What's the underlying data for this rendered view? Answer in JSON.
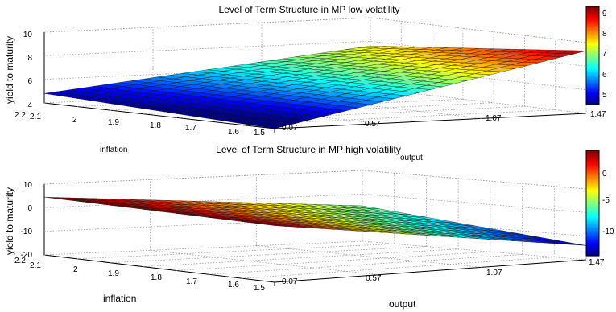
{
  "chart_data": [
    {
      "type": "surface",
      "title": "Level of Term Structure in MP low volatility",
      "xlabel": "output",
      "ylabel": "inflation",
      "zlabel": "yield to maturity",
      "x_ticks": [
        "0.07",
        "0.57",
        "1.07",
        "1.47"
      ],
      "y_ticks": [
        "2.2",
        "2.1",
        "2",
        "1.9",
        "1.8",
        "1.7",
        "1.6",
        "1.5"
      ],
      "z_ticks": [
        "4",
        "6",
        "8",
        "10"
      ],
      "zlim": [
        4,
        10
      ],
      "colorbar_ticks": [
        "5",
        "6",
        "7",
        "8",
        "9"
      ],
      "colorbar_range": [
        4.5,
        9.5
      ],
      "colormap": "jet",
      "grid": true,
      "corner_values": {
        "output_0.07_inflation_2.2": 4.8,
        "output_0.07_inflation_1.5": 4.0,
        "output_1.47_inflation_2.2": 7.6,
        "output_1.47_inflation_1.5": 9.3
      }
    },
    {
      "type": "surface",
      "title": "Level of Term Structure in MP high volatility",
      "xlabel": "output",
      "ylabel": "inflation",
      "zlabel": "yield to maturity",
      "x_ticks": [
        "0.07",
        "0.57",
        "1.07",
        "1.47"
      ],
      "y_ticks": [
        "2.2",
        "2.1",
        "2",
        "1.9",
        "1.8",
        "1.7",
        "1.6",
        "1.5"
      ],
      "z_ticks": [
        "-20",
        "-10",
        "0",
        "10"
      ],
      "zlim": [
        -20,
        10
      ],
      "colorbar_ticks": [
        "-10",
        "-5",
        "0"
      ],
      "colorbar_range": [
        -14.5,
        4.5
      ],
      "colormap": "jet",
      "grid": true,
      "corner_values": {
        "output_0.07_inflation_2.2": 4.5,
        "output_0.07_inflation_1.5": 4.0,
        "output_1.47_inflation_2.2": -5.0,
        "output_1.47_inflation_1.5": -14.0
      }
    }
  ]
}
